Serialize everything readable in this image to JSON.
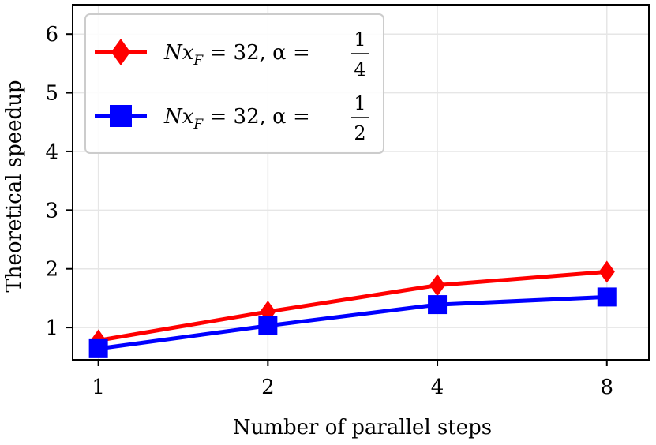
{
  "chart_data": {
    "type": "line",
    "title": "",
    "xlabel": "Number of parallel steps",
    "ylabel": "Theoretical speedup",
    "x_scale": "log2",
    "x_ticks": [
      1,
      2,
      4,
      8
    ],
    "x_tick_labels": [
      "1",
      "2",
      "4",
      "8"
    ],
    "y_ticks": [
      1,
      2,
      3,
      4,
      5,
      6
    ],
    "y_tick_labels": [
      "1",
      "2",
      "3",
      "4",
      "5",
      "6"
    ],
    "xlim": [
      0.9,
      9.5
    ],
    "ylim": [
      0.45,
      6.5
    ],
    "grid": true,
    "legend_position": "top-left",
    "series": [
      {
        "name": "Nx_F = 32, α = 1/4",
        "legend": {
          "prefix": "Nx",
          "subscript": "F",
          "mid": " = 32, α = ",
          "num": "1",
          "den": "4"
        },
        "color": "#ff0000",
        "marker": "diamond",
        "x": [
          1,
          2,
          4,
          8
        ],
        "values": [
          0.78,
          1.27,
          1.72,
          1.95
        ]
      },
      {
        "name": "Nx_F = 32, α = 1/2",
        "legend": {
          "prefix": "Nx",
          "subscript": "F",
          "mid": " = 32, α = ",
          "num": "1",
          "den": "2"
        },
        "color": "#0000ff",
        "marker": "square",
        "x": [
          1,
          2,
          4,
          8
        ],
        "values": [
          0.64,
          1.03,
          1.39,
          1.52
        ]
      }
    ]
  }
}
